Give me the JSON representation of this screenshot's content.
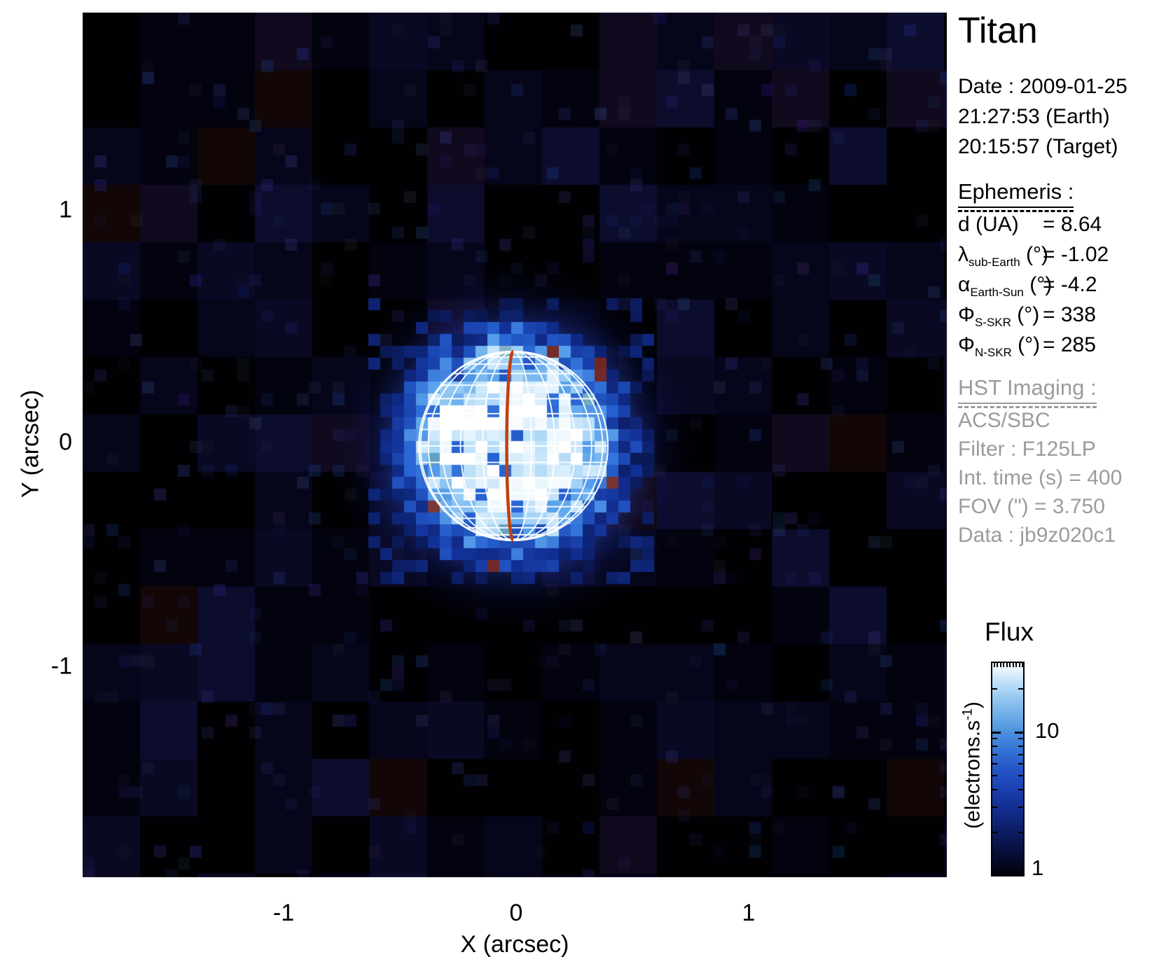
{
  "title": "Titan",
  "date_block": {
    "line1": "Date : 2009-01-25",
    "line2": "21:27:53 (Earth)",
    "line3": "20:15:57 (Target)"
  },
  "ephemeris": {
    "heading": "Ephemeris :",
    "rows": [
      {
        "symbol": "d",
        "sub": "",
        "unit": " (UA)",
        "value": "= 8.64"
      },
      {
        "symbol": "λ",
        "sub": "sub-Earth",
        "unit": " (°)",
        "value": "= -1.02"
      },
      {
        "symbol": "α",
        "sub": "Earth-Sun",
        "unit": " (°)",
        "value": "= -4.2"
      },
      {
        "symbol": "Φ",
        "sub": "S-SKR",
        "unit": " (°)",
        "value": "= 338"
      },
      {
        "symbol": "Φ",
        "sub": "N-SKR",
        "unit": " (°)",
        "value": "= 285"
      }
    ]
  },
  "hst": {
    "heading": "HST Imaging :",
    "lines": [
      "ACS/SBC",
      "Filter : F125LP",
      "Int. time (s) = 400",
      "FOV (\") = 3.750",
      "Data : jb9z020c1"
    ]
  },
  "axes": {
    "x_label": "X (arcsec)",
    "y_label": "Y (arcsec)",
    "x_ticks": [
      "-1",
      "0",
      "1"
    ],
    "y_ticks": [
      "1",
      "0",
      "-1"
    ]
  },
  "colorbar_panel": {
    "title": "Flux",
    "label_10": "10",
    "label_1": "1",
    "unit_prefix": "(electrons.s",
    "unit_sup": "-1",
    "unit_suffix": ")"
  },
  "chart_data": {
    "type": "heatmap",
    "title": "Titan",
    "xlabel": "X (arcsec)",
    "ylabel": "Y (arcsec)",
    "x_ticks": [
      -1,
      0,
      1
    ],
    "y_ticks": [
      1,
      0,
      -1
    ],
    "x_range": [
      -1.875,
      1.875
    ],
    "y_range": [
      -1.875,
      1.875
    ],
    "fov_arcsec": 3.75,
    "colorbar": {
      "title": "Flux",
      "unit": "(electrons.s-1)",
      "scale": "log",
      "min": 1,
      "max": 30,
      "labeled_ticks": [
        1,
        10
      ],
      "minor_ticks": [
        2,
        3,
        4,
        5,
        6,
        7,
        8,
        9,
        10,
        20
      ]
    },
    "object": {
      "name": "Titan",
      "center_arcsec": [
        0,
        0
      ],
      "angular_radius_arcsec": 0.41,
      "peak_flux_electrons_s": 30,
      "background_flux_electrons_s": 1,
      "description": "Pixelated blue disc of Titan in FUV (F125LP), bright mottled cyan core fading into a blue scattered-light halo over a near-black noisy sky"
    },
    "grid_overlay": {
      "lat_step_deg": 10,
      "lat_max_deg": 80,
      "meridian_offsets_deg": [
        -79,
        -64,
        -49,
        -34,
        -19,
        11,
        26,
        41,
        56,
        71
      ],
      "highlight_meridian_offset_deg": -4,
      "color": "#ffffff",
      "highlight_color": "#c04010"
    }
  }
}
